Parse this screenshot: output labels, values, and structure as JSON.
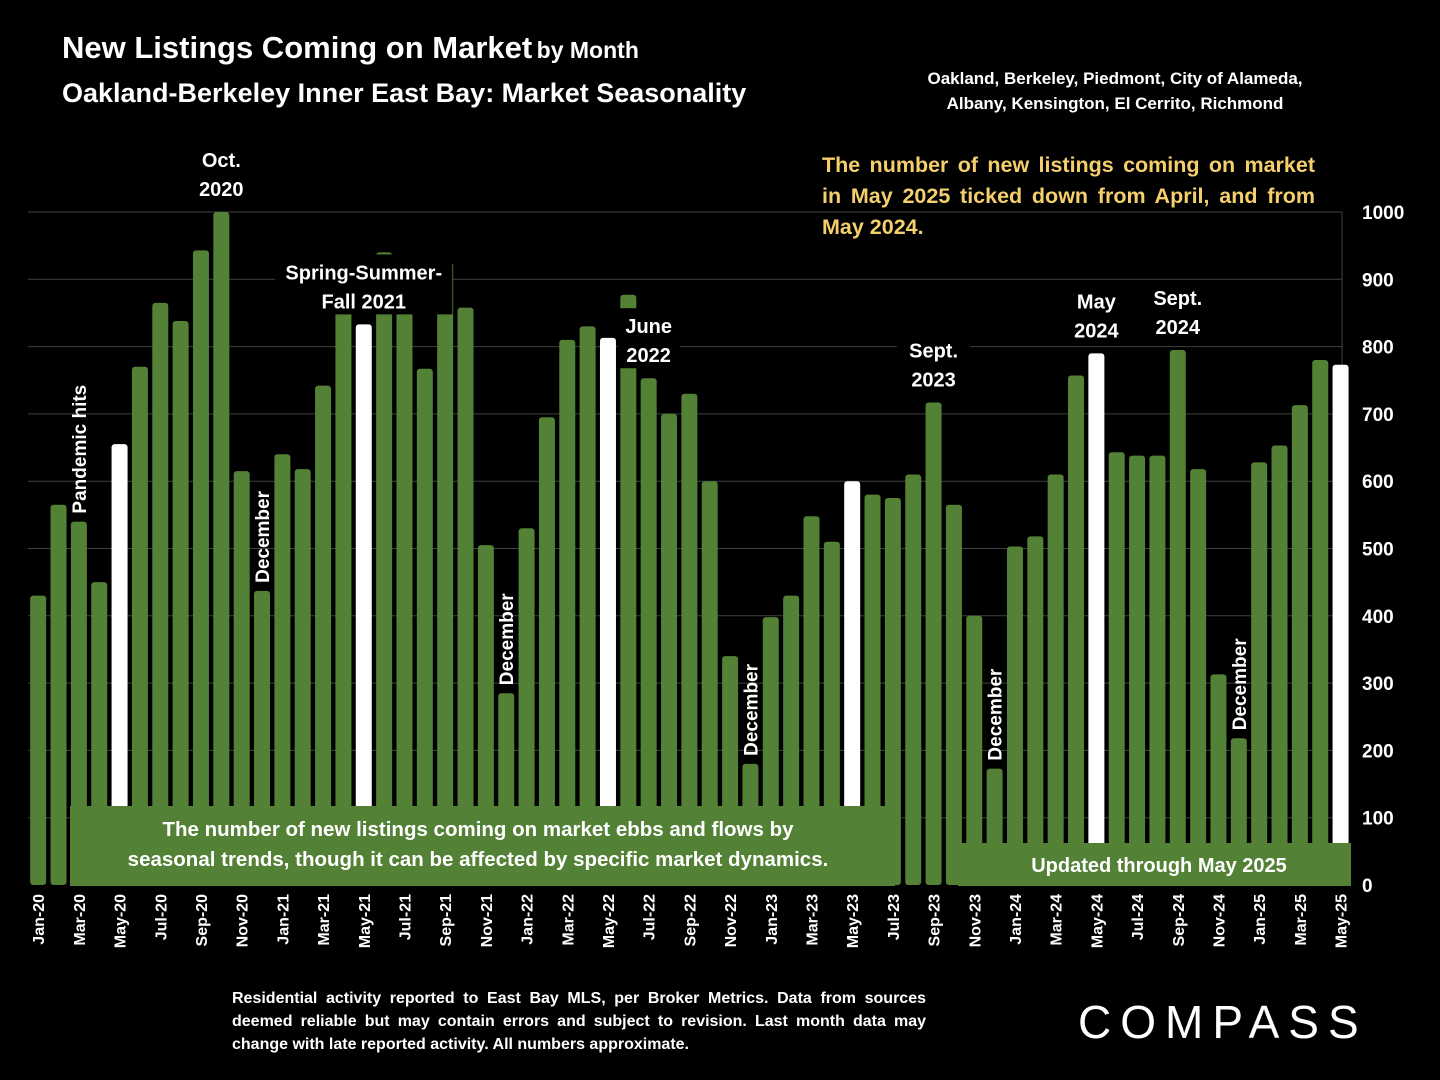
{
  "header": {
    "title_main": "New Listings Coming on Market",
    "title_suffix": "by Month",
    "subtitle": "Oakland-Berkeley Inner East Bay: Market Seasonality",
    "regions_line1": "Oakland, Berkeley, Piedmont, City of Alameda,",
    "regions_line2": "Albany, Kensington, El Cerrito, Richmond"
  },
  "callout": "The number of new listings coming on market in May 2025 ticked down from April, and from May 2024.",
  "footnote": "Residential activity reported to East Bay MLS, per Broker Metrics. Data from sources deemed reliable but may contain errors and subject to revision. Last month data may change with late reported activity. All numbers approximate.",
  "logo": "COMPASS",
  "colors": {
    "bar": "#538135",
    "highlight": "#ffffff",
    "callout_text": "#f5cf6c",
    "background": "#000000",
    "gridline": "#404040"
  },
  "boxes": {
    "summary_line1": "The number of new listings coming on market ebbs and flows by",
    "summary_line2": "seasonal trends, though it can be affected by specific market dynamics.",
    "updated": "Updated through May 2025"
  },
  "annotations": [
    {
      "lines": [
        "Oct.",
        "2020"
      ],
      "month": 9
    },
    {
      "lines": [
        "Spring-Summer-",
        "Fall  2021"
      ],
      "month": 16
    },
    {
      "lines": [
        "June",
        "2022"
      ],
      "month": 30
    },
    {
      "lines": [
        "Sept.",
        "2023"
      ],
      "month": 44
    },
    {
      "lines": [
        "May",
        "2024"
      ],
      "month": 52
    },
    {
      "lines": [
        "Sept.",
        "2024"
      ],
      "month": 56
    }
  ],
  "vertical_annotations": [
    {
      "text": "Pandemic hits",
      "month": 2
    },
    {
      "text": "December",
      "month": 11
    },
    {
      "text": "December",
      "month": 23
    },
    {
      "text": "December",
      "month": 35
    },
    {
      "text": "December",
      "month": 47
    },
    {
      "text": "December",
      "month": 59
    }
  ],
  "chart_data": {
    "type": "bar",
    "title": "New Listings Coming on Market by Month",
    "categories": [
      "Jan-20",
      "Feb-20",
      "Mar-20",
      "Apr-20",
      "May-20",
      "Jun-20",
      "Jul-20",
      "Aug-20",
      "Sep-20",
      "Oct-20",
      "Nov-20",
      "Dec-20",
      "Jan-21",
      "Feb-21",
      "Mar-21",
      "Apr-21",
      "May-21",
      "Jun-21",
      "Jul-21",
      "Aug-21",
      "Sep-21",
      "Oct-21",
      "Nov-21",
      "Dec-21",
      "Jan-22",
      "Feb-22",
      "Mar-22",
      "Apr-22",
      "May-22",
      "Jun-22",
      "Jul-22",
      "Aug-22",
      "Sep-22",
      "Oct-22",
      "Nov-22",
      "Dec-22",
      "Jan-23",
      "Feb-23",
      "Mar-23",
      "Apr-23",
      "May-23",
      "Jun-23",
      "Jul-23",
      "Aug-23",
      "Sep-23",
      "Oct-23",
      "Nov-23",
      "Dec-23",
      "Jan-24",
      "Feb-24",
      "Mar-24",
      "Apr-24",
      "May-24",
      "Jun-24",
      "Jul-24",
      "Aug-24",
      "Sep-24",
      "Oct-24",
      "Nov-24",
      "Dec-24",
      "Jan-25",
      "Feb-25",
      "Mar-25",
      "Apr-25",
      "May-25"
    ],
    "values": [
      430,
      565,
      540,
      450,
      655,
      770,
      865,
      838,
      943,
      1000,
      615,
      437,
      640,
      618,
      742,
      930,
      833,
      940,
      920,
      767,
      925,
      858,
      505,
      285,
      530,
      695,
      810,
      830,
      813,
      877,
      753,
      700,
      730,
      600,
      340,
      180,
      398,
      430,
      548,
      510,
      600,
      580,
      575,
      610,
      717,
      565,
      400,
      173,
      503,
      518,
      610,
      757,
      790,
      643,
      638,
      638,
      795,
      618,
      313,
      218,
      628,
      653,
      713,
      780,
      773
    ],
    "highlight_indices": [
      4,
      16,
      28,
      40,
      52,
      64
    ],
    "tick_labels": [
      "Jan-20",
      "Mar-20",
      "May-20",
      "Jul-20",
      "Sep-20",
      "Nov-20",
      "Jan-21",
      "Mar-21",
      "May-21",
      "Jul-21",
      "Sep-21",
      "Nov-21",
      "Jan-22",
      "Mar-22",
      "May-22",
      "Jul-22",
      "Sep-22",
      "Nov-22",
      "Jan-23",
      "Mar-23",
      "May-23",
      "Jul-23",
      "Sep-23",
      "Nov-23",
      "Jan-24",
      "Mar-24",
      "May-24",
      "Jul-24",
      "Sep-24",
      "Nov-24",
      "Jan-25",
      "Mar-25",
      "May-25"
    ],
    "y_ticks": [
      "0",
      "100",
      "200",
      "300",
      "400",
      "500",
      "600",
      "700",
      "800",
      "900",
      "1000"
    ],
    "ylim": [
      0,
      1000
    ],
    "grid": true,
    "y_axis_side": "right"
  }
}
